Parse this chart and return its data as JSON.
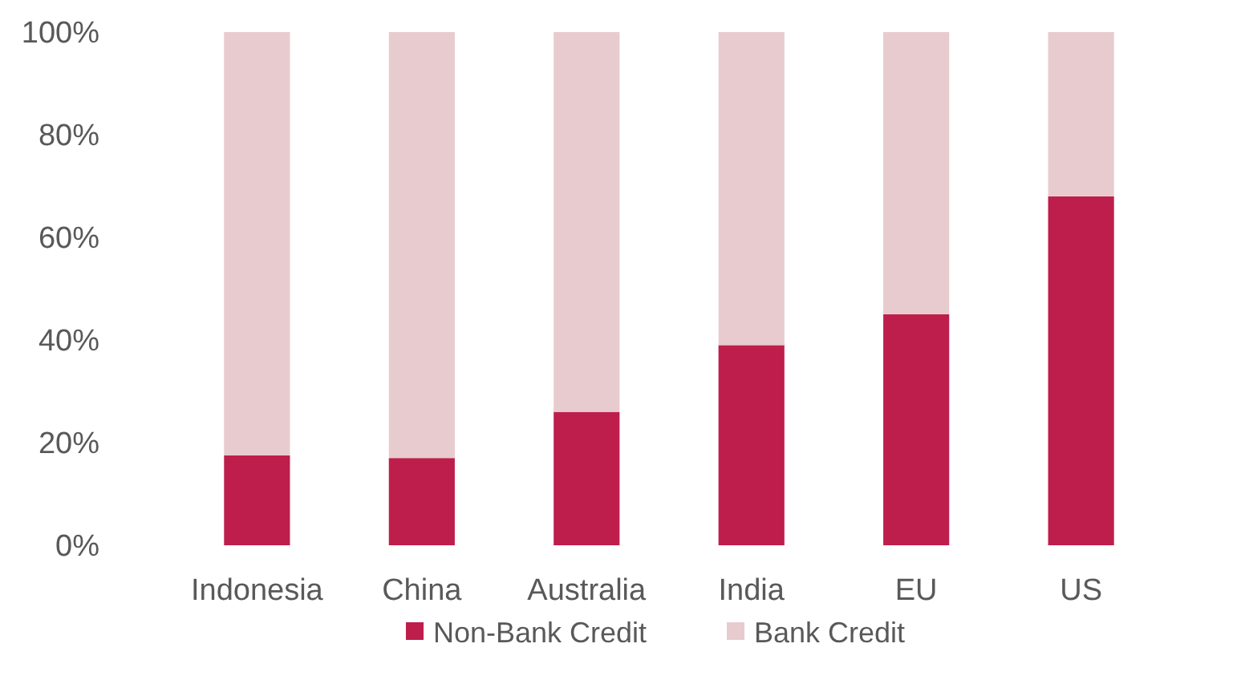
{
  "chart_data": {
    "type": "bar",
    "stacked": true,
    "categories": [
      "Indonesia",
      "China",
      "Australia",
      "India",
      "EU",
      "US"
    ],
    "series": [
      {
        "name": "Non-Bank Credit",
        "color": "#be1e4b",
        "values": [
          17.5,
          17,
          26,
          39,
          45,
          68
        ]
      },
      {
        "name": "Bank Credit",
        "color": "#e8cbcf",
        "values": [
          82.5,
          83,
          74,
          61,
          55,
          32
        ]
      }
    ],
    "ylim": [
      0,
      100
    ],
    "yticks": [
      {
        "value": 0,
        "label": "0%"
      },
      {
        "value": 20,
        "label": "20%"
      },
      {
        "value": 40,
        "label": "40%"
      },
      {
        "value": 60,
        "label": "60%"
      },
      {
        "value": 80,
        "label": "80%"
      },
      {
        "value": 100,
        "label": "100%"
      }
    ],
    "legend": "bottom"
  }
}
